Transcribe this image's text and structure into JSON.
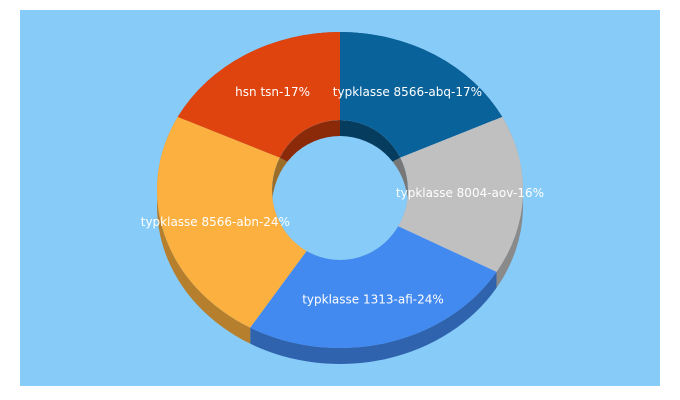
{
  "chart_data": {
    "type": "pie3d",
    "value_labels": [
      "typklasse 8566-abq-17%",
      "typklasse 8004-aov-16%",
      "typklasse 1313-afi-24%",
      "typklasse 8566-abn-24%",
      "hsn tsn-17%"
    ],
    "values": [
      17,
      16,
      24,
      24,
      17
    ],
    "colors": [
      "#09629a",
      "#c0c0c0",
      "#4289f0",
      "#fbb040",
      "#e0440e"
    ]
  }
}
